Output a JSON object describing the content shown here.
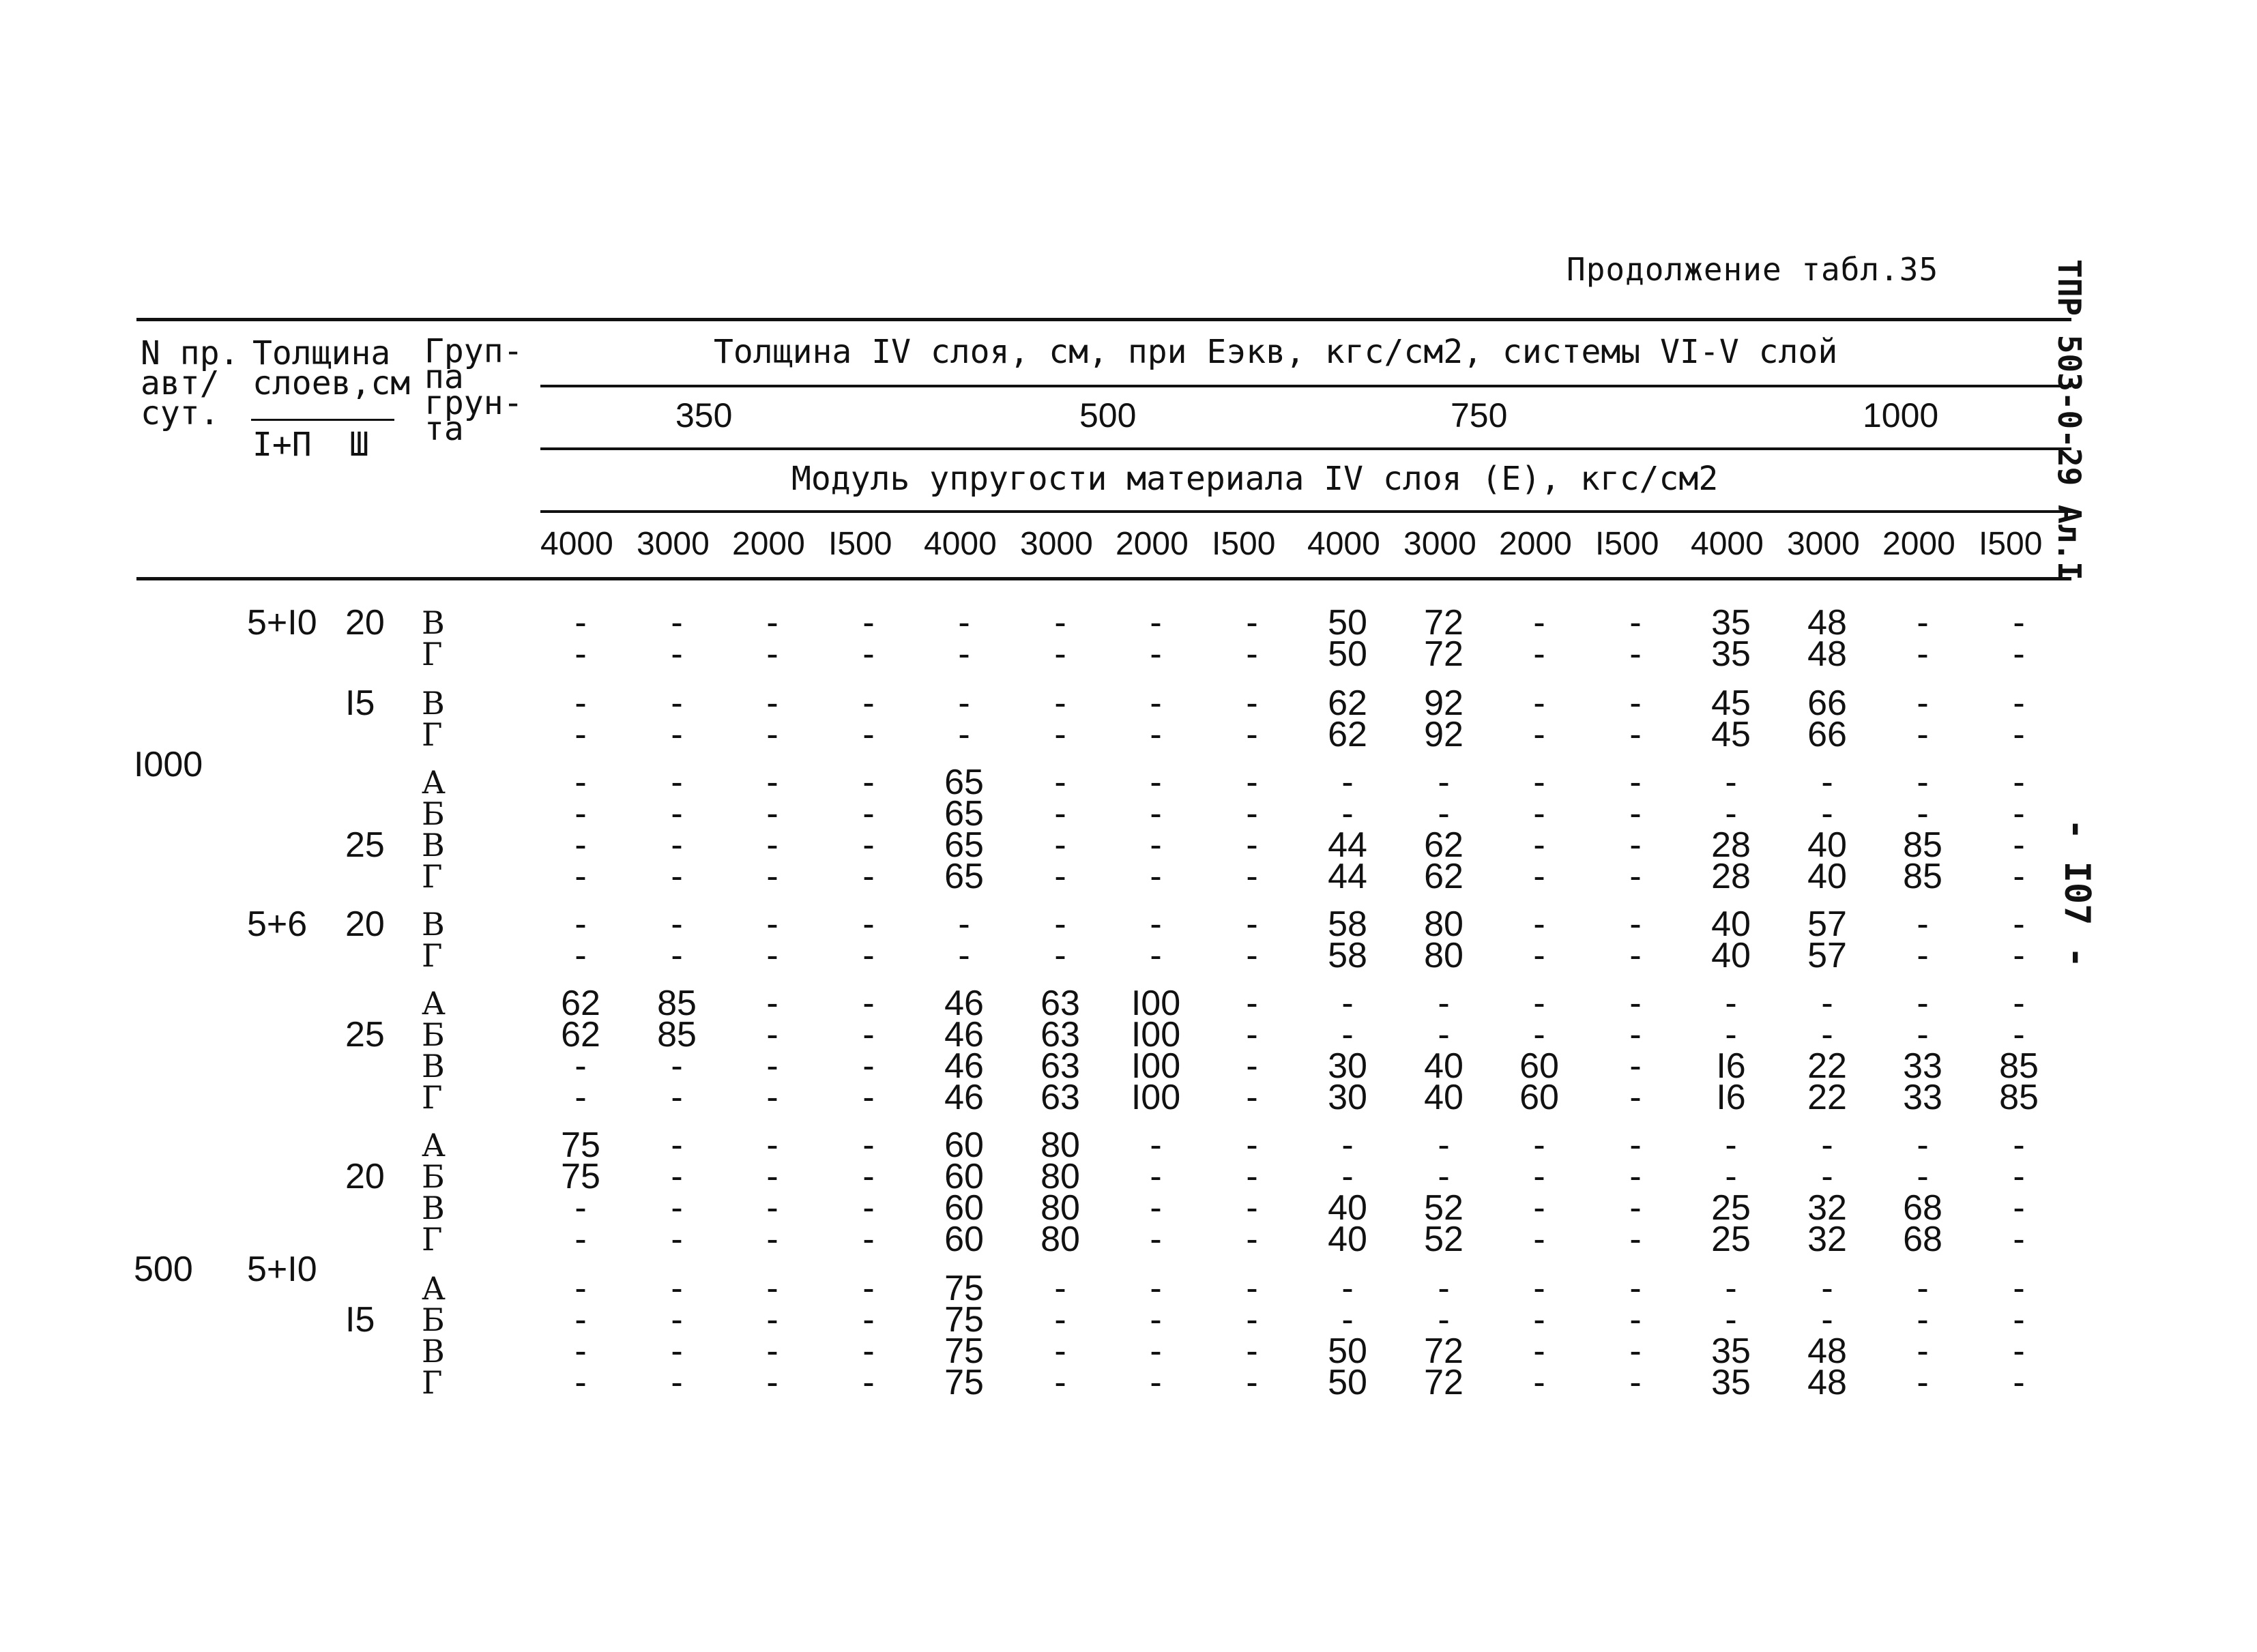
{
  "caption": "Продолжение табл.35",
  "side_code": "ТПР 503-0-29 Ал.I",
  "page_number": "- I07 -",
  "header": {
    "col_no": "N пр.\nавт/\nсут.",
    "col_thick": "Толщина\nслоев,см",
    "col_thick_a": "I+П",
    "col_thick_b": "Ш",
    "col_group": "Груп-\nпа\nгрун-\nта",
    "span_title": "Толщина IV слоя, см, при Еэкв, кгс/см2, системы VI-V слой",
    "ekv_values": [
      "350",
      "500",
      "750",
      "1000"
    ],
    "module_title": "Модуль упругости материала IV слоя (Е), кгс/см2",
    "e_values": [
      "4000",
      "3000",
      "2000",
      "I500",
      "4000",
      "3000",
      "2000",
      "I500",
      "4000",
      "3000",
      "2000",
      "I500",
      "4000",
      "3000",
      "2000",
      "I500"
    ]
  },
  "rows": [
    {
      "n": "",
      "t12": "5+I0",
      "t3": "20",
      "g": "В",
      "v": [
        "-",
        "-",
        "-",
        "-",
        "-",
        "-",
        "-",
        "-",
        "50",
        "72",
        "-",
        "-",
        "35",
        "48",
        "-",
        "-"
      ]
    },
    {
      "n": "",
      "t12": "",
      "t3": "",
      "g": "Г",
      "v": [
        "-",
        "-",
        "-",
        "-",
        "-",
        "-",
        "-",
        "-",
        "50",
        "72",
        "-",
        "-",
        "35",
        "48",
        "-",
        "-"
      ]
    },
    {
      "n": "",
      "t12": "",
      "t3": "I5",
      "g": "В",
      "v": [
        "-",
        "-",
        "-",
        "-",
        "-",
        "-",
        "-",
        "-",
        "62",
        "92",
        "-",
        "-",
        "45",
        "66",
        "-",
        "-"
      ]
    },
    {
      "n": "",
      "t12": "",
      "t3": "",
      "g": "Г",
      "v": [
        "-",
        "-",
        "-",
        "-",
        "-",
        "-",
        "-",
        "-",
        "62",
        "92",
        "-",
        "-",
        "45",
        "66",
        "-",
        "-"
      ]
    },
    {
      "n": "I000",
      "t12": "",
      "t3": "",
      "g": "А",
      "v": [
        "-",
        "-",
        "-",
        "-",
        "65",
        "-",
        "-",
        "-",
        "-",
        "-",
        "-",
        "-",
        "-",
        "-",
        "-",
        "-"
      ]
    },
    {
      "n": "",
      "t12": "",
      "t3": "",
      "g": "Б",
      "v": [
        "-",
        "-",
        "-",
        "-",
        "65",
        "-",
        "-",
        "-",
        "-",
        "-",
        "-",
        "-",
        "-",
        "-",
        "-",
        "-"
      ]
    },
    {
      "n": "",
      "t12": "",
      "t3": "25",
      "g": "В",
      "v": [
        "-",
        "-",
        "-",
        "-",
        "65",
        "-",
        "-",
        "-",
        "44",
        "62",
        "-",
        "-",
        "28",
        "40",
        "85",
        "-"
      ]
    },
    {
      "n": "",
      "t12": "",
      "t3": "",
      "g": "Г",
      "v": [
        "-",
        "-",
        "-",
        "-",
        "65",
        "-",
        "-",
        "-",
        "44",
        "62",
        "-",
        "-",
        "28",
        "40",
        "85",
        "-"
      ]
    },
    {
      "n": "",
      "t12": "5+6",
      "t3": "20",
      "g": "В",
      "v": [
        "-",
        "-",
        "-",
        "-",
        "-",
        "-",
        "-",
        "-",
        "58",
        "80",
        "-",
        "-",
        "40",
        "57",
        "-",
        "-"
      ]
    },
    {
      "n": "",
      "t12": "",
      "t3": "",
      "g": "Г",
      "v": [
        "-",
        "-",
        "-",
        "-",
        "-",
        "-",
        "-",
        "-",
        "58",
        "80",
        "-",
        "-",
        "40",
        "57",
        "-",
        "-"
      ]
    },
    {
      "n": "",
      "t12": "",
      "t3": "",
      "g": "А",
      "v": [
        "62",
        "85",
        "-",
        "-",
        "46",
        "63",
        "I00",
        "-",
        "-",
        "-",
        "-",
        "-",
        "-",
        "-",
        "-",
        "-"
      ]
    },
    {
      "n": "",
      "t12": "",
      "t3": "25",
      "g": "Б",
      "v": [
        "62",
        "85",
        "-",
        "-",
        "46",
        "63",
        "I00",
        "-",
        "-",
        "-",
        "-",
        "-",
        "-",
        "-",
        "-",
        "-"
      ]
    },
    {
      "n": "",
      "t12": "",
      "t3": "",
      "g": "В",
      "v": [
        "-",
        "-",
        "-",
        "-",
        "46",
        "63",
        "I00",
        "-",
        "30",
        "40",
        "60",
        "-",
        "I6",
        "22",
        "33",
        "85"
      ]
    },
    {
      "n": "",
      "t12": "",
      "t3": "",
      "g": "Г",
      "v": [
        "-",
        "-",
        "-",
        "-",
        "46",
        "63",
        "I00",
        "-",
        "30",
        "40",
        "60",
        "-",
        "I6",
        "22",
        "33",
        "85"
      ]
    },
    {
      "n": "",
      "t12": "",
      "t3": "",
      "g": "А",
      "v": [
        "75",
        "-",
        "-",
        "-",
        "60",
        "80",
        "-",
        "-",
        "-",
        "-",
        "-",
        "-",
        "-",
        "-",
        "-",
        "-"
      ]
    },
    {
      "n": "",
      "t12": "",
      "t3": "20",
      "g": "Б",
      "v": [
        "75",
        "-",
        "-",
        "-",
        "60",
        "80",
        "-",
        "-",
        "-",
        "-",
        "-",
        "-",
        "-",
        "-",
        "-",
        "-"
      ]
    },
    {
      "n": "",
      "t12": "",
      "t3": "",
      "g": "В",
      "v": [
        "-",
        "-",
        "-",
        "-",
        "60",
        "80",
        "-",
        "-",
        "40",
        "52",
        "-",
        "-",
        "25",
        "32",
        "68",
        "-"
      ]
    },
    {
      "n": "",
      "t12": "",
      "t3": "",
      "g": "Г",
      "v": [
        "-",
        "-",
        "-",
        "-",
        "60",
        "80",
        "-",
        "-",
        "40",
        "52",
        "-",
        "-",
        "25",
        "32",
        "68",
        "-"
      ]
    },
    {
      "n": "500",
      "t12": "5+I0",
      "t3": "",
      "g": "А",
      "v": [
        "-",
        "-",
        "-",
        "-",
        "75",
        "-",
        "-",
        "-",
        "-",
        "-",
        "-",
        "-",
        "-",
        "-",
        "-",
        "-"
      ]
    },
    {
      "n": "",
      "t12": "",
      "t3": "I5",
      "g": "Б",
      "v": [
        "-",
        "-",
        "-",
        "-",
        "75",
        "-",
        "-",
        "-",
        "-",
        "-",
        "-",
        "-",
        "-",
        "-",
        "-",
        "-"
      ]
    },
    {
      "n": "",
      "t12": "",
      "t3": "",
      "g": "В",
      "v": [
        "-",
        "-",
        "-",
        "-",
        "75",
        "-",
        "-",
        "-",
        "50",
        "72",
        "-",
        "-",
        "35",
        "48",
        "-",
        "-"
      ]
    },
    {
      "n": "",
      "t12": "",
      "t3": "",
      "g": "Г",
      "v": [
        "-",
        "-",
        "-",
        "-",
        "75",
        "-",
        "-",
        "-",
        "50",
        "72",
        "-",
        "-",
        "35",
        "48",
        "-",
        "-"
      ]
    }
  ]
}
